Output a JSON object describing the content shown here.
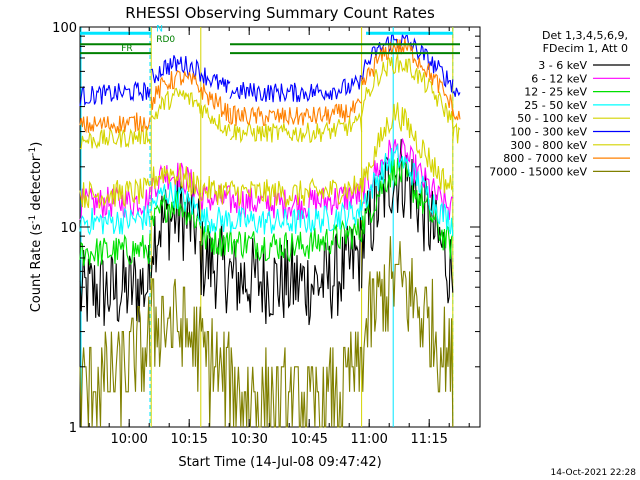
{
  "chart_data": {
    "type": "line",
    "title": "RHESSI Observing Summary Count Rates",
    "xlabel": "Start Time (14-Jul-08 09:47:42)",
    "ylabel": "Count Rate (s^-1 detector^-1)",
    "ylabel_parts": {
      "main": "Count Rate (s",
      "exp": "-1",
      "mid": " detector",
      "end": ")"
    },
    "y_scale": "log",
    "ylim": [
      1,
      100
    ],
    "x_unit": "minutes since 09:47:42",
    "xlim": [
      0,
      100
    ],
    "x_ticks": [
      {
        "x": 12.3,
        "label": "10:00"
      },
      {
        "x": 27.3,
        "label": "10:15"
      },
      {
        "x": 42.3,
        "label": "10:30"
      },
      {
        "x": 57.3,
        "label": "10:45"
      },
      {
        "x": 72.3,
        "label": "11:00"
      },
      {
        "x": 87.3,
        "label": "11:15"
      }
    ],
    "y_ticks": [
      {
        "y": 1,
        "label": "1"
      },
      {
        "y": 10,
        "label": "10"
      },
      {
        "y": 100,
        "label": "100"
      }
    ],
    "legend": {
      "header1": "Det 1,3,4,5,6,9,",
      "header2": "FDecim 1, Att 0",
      "placement": "right"
    },
    "gaps": [
      [
        17.8,
        30.2
      ],
      [
        70.4,
        93.2
      ]
    ],
    "night_boundaries": [
      17.5,
      93.2
    ],
    "saa_marker_x": 78.3,
    "flags": [
      {
        "name": "N",
        "label": "N",
        "color": "#00e5ff",
        "y": 93,
        "segments": [
          [
            0,
            17.8
          ],
          [
            71.5,
            93.2
          ]
        ]
      },
      {
        "name": "RD0",
        "label": "RD0",
        "color": "#008000",
        "y": 82,
        "segments": [
          [
            0,
            17.8
          ],
          [
            37.5,
            95
          ]
        ]
      },
      {
        "name": "FR",
        "label": "FR",
        "color": "#008000",
        "y": 74,
        "segments": [
          [
            0,
            17.8
          ],
          [
            37.5,
            95
          ]
        ]
      }
    ],
    "series": [
      {
        "name": "3 - 6 keV",
        "color": "#000000",
        "segments": [
          {
            "x": [
              0,
              4,
              8,
              12,
              17.5
            ],
            "y": [
              4.6,
              4.8,
              4.7,
              4.9,
              5.2
            ]
          },
          {
            "x": [
              17.8,
              20,
              24,
              27,
              30
            ],
            "y": [
              9,
              10.5,
              11.5,
              10.8,
              9.5
            ]
          },
          {
            "x": [
              30,
              33,
              36,
              37.5
            ],
            "y": [
              7,
              6.5,
              6.2,
              6.0
            ]
          },
          {
            "x": [
              37.5,
              42,
              50,
              57,
              62,
              67,
              70.4
            ],
            "y": [
              5.6,
              5.5,
              5.3,
              5.2,
              5.4,
              6.2,
              7.5
            ]
          },
          {
            "x": [
              70.4,
              73,
              76,
              78,
              80,
              83,
              86,
              89,
              91,
              93.2
            ],
            "y": [
              8,
              11,
              15,
              18,
              18.5,
              16,
              12,
              9,
              7.5,
              5.6
            ]
          }
        ]
      },
      {
        "name": "6 - 12 keV",
        "color": "#ff00ff",
        "segments": [
          {
            "x": [
              0,
              6,
              12,
              17.5
            ],
            "y": [
              13,
              13.2,
              13.4,
              13.6
            ]
          },
          {
            "x": [
              17.8,
              21,
              25,
              27,
              29,
              30.2
            ],
            "y": [
              16,
              18.5,
              18,
              17,
              15.5,
              14
            ]
          },
          {
            "x": [
              30.2,
              35,
              45,
              55,
              62,
              70.4
            ],
            "y": [
              14,
              13.6,
              13.2,
              13.0,
              13.6,
              14.5
            ]
          },
          {
            "x": [
              70.4,
              74,
              77,
              79,
              82,
              86,
              90,
              93.2
            ],
            "y": [
              15,
              19,
              23,
              24.5,
              22,
              17,
              13.5,
              12
            ]
          }
        ]
      },
      {
        "name": "12 - 25 keV",
        "color": "#00e000",
        "segments": [
          {
            "x": [
              0,
              6,
              12,
              17.5
            ],
            "y": [
              7.5,
              7.5,
              7.6,
              7.8
            ]
          },
          {
            "x": [
              17.8,
              21,
              24,
              27,
              30.2
            ],
            "y": [
              10,
              12.5,
              13.5,
              12,
              10.5
            ]
          },
          {
            "x": [
              30.2,
              36,
              45,
              55,
              62,
              70.4
            ],
            "y": [
              8.8,
              8.5,
              8.2,
              8.0,
              8.6,
              9.5
            ]
          },
          {
            "x": [
              70.4,
              74,
              77,
              79,
              82,
              86,
              90,
              93.2
            ],
            "y": [
              10,
              14,
              18,
              19.5,
              17,
              13,
              9.5,
              7.8
            ]
          }
        ]
      },
      {
        "name": "25 - 50 keV",
        "color": "#00ffff",
        "segments": [
          {
            "x": [
              0,
              6,
              12,
              17.5
            ],
            "y": [
              10.8,
              10.6,
              10.8,
              11.2
            ]
          },
          {
            "x": [
              17.8,
              21,
              24,
              27,
              30.2
            ],
            "y": [
              12.5,
              15,
              14.5,
              13.2,
              12
            ]
          },
          {
            "x": [
              30.2,
              36,
              45,
              55,
              62,
              70.4
            ],
            "y": [
              11,
              10.8,
              10.6,
              10.6,
              11,
              12
            ]
          },
          {
            "x": [
              70.4,
              74,
              77,
              79,
              82,
              86,
              90,
              93.2
            ],
            "y": [
              13,
              17,
              21,
              22.5,
              20,
              15.5,
              12,
              10.5
            ]
          }
        ]
      },
      {
        "name": "50 - 100 keV",
        "color": "#d4d400",
        "segments": [
          {
            "x": [
              0,
              6,
              12,
              17.5
            ],
            "y": [
              14.5,
              14.5,
              14.8,
              15
            ]
          },
          {
            "x": [
              17.8,
              21,
              24,
              27,
              30.2
            ],
            "y": [
              17,
              19,
              18.5,
              17,
              15.5
            ]
          },
          {
            "x": [
              30.2,
              36,
              45,
              55,
              62,
              70.4
            ],
            "y": [
              15.5,
              15,
              14.8,
              14.6,
              15,
              16
            ]
          },
          {
            "x": [
              70.4,
              74,
              77,
              79,
              82,
              86,
              90,
              93.2
            ],
            "y": [
              17,
              24,
              33,
              38,
              32,
              24,
              18,
              15.5
            ]
          }
        ]
      },
      {
        "name": "100 - 300 keV",
        "color": "#0000ff",
        "segments": [
          {
            "x": [
              0,
              6,
              12,
              17.5
            ],
            "y": [
              45,
              46,
              47,
              48
            ]
          },
          {
            "x": [
              17.8,
              21,
              25,
              29,
              32,
              36,
              37.5
            ],
            "y": [
              55,
              63,
              66,
              62,
              56,
              50,
              48
            ]
          },
          {
            "x": [
              37.5,
              45,
              55,
              62,
              68,
              70.4
            ],
            "y": [
              48,
              47,
              47,
              48,
              50,
              52
            ]
          },
          {
            "x": [
              70.4,
              74,
              78,
              82,
              86,
              90,
              93.2
            ],
            "y": [
              60,
              75,
              86,
              84,
              72,
              60,
              52
            ]
          },
          {
            "x": [
              93.2,
              95
            ],
            "y": [
              48,
              47
            ]
          }
        ]
      },
      {
        "name": "300 - 800 keV",
        "color": "#d4d400",
        "segments": [
          {
            "x": [
              0,
              6,
              12,
              17.5
            ],
            "y": [
              27,
              27.5,
              28,
              29
            ]
          },
          {
            "x": [
              17.8,
              21,
              25,
              29,
              32,
              36,
              37.5
            ],
            "y": [
              34,
              42,
              46,
              42,
              37,
              32,
              30
            ]
          },
          {
            "x": [
              37.5,
              45,
              55,
              62,
              68,
              70.4
            ],
            "y": [
              30,
              29.5,
              29.5,
              30,
              32,
              33
            ]
          },
          {
            "x": [
              70.4,
              74,
              78,
              82,
              86,
              90,
              93.2
            ],
            "y": [
              40,
              56,
              66,
              64,
              53,
              42,
              34
            ]
          },
          {
            "x": [
              93.2,
              95
            ],
            "y": [
              30,
              29
            ]
          }
        ]
      },
      {
        "name": "800 - 7000 keV",
        "color": "#ff8000",
        "segments": [
          {
            "x": [
              0,
              6,
              12,
              17.5
            ],
            "y": [
              32,
              32.5,
              33,
              34
            ]
          },
          {
            "x": [
              17.8,
              21,
              25,
              29,
              32,
              36,
              37.5
            ],
            "y": [
              42,
              52,
              56,
              52,
              45,
              39,
              36
            ]
          },
          {
            "x": [
              37.5,
              45,
              55,
              62,
              68,
              70.4
            ],
            "y": [
              36,
              35.5,
              35.5,
              36,
              38,
              40
            ]
          },
          {
            "x": [
              70.4,
              74,
              78,
              82,
              86,
              90,
              93.2
            ],
            "y": [
              50,
              66,
              80,
              78,
              64,
              50,
              40
            ]
          },
          {
            "x": [
              93.2,
              95
            ],
            "y": [
              36,
              35
            ]
          }
        ]
      },
      {
        "name": "7000 - 15000 keV",
        "color": "#808000",
        "segments": [
          {
            "x": [
              0,
              4,
              8,
              12,
              15,
              17.5
            ],
            "y": [
              1.5,
              1.6,
              1.7,
              2.0,
              2.4,
              2.8
            ]
          },
          {
            "x": [
              17.8,
              20,
              23,
              26,
              29,
              32,
              35,
              37.5
            ],
            "y": [
              3.2,
              3.5,
              3.4,
              3.0,
              2.6,
              2.2,
              1.8,
              1.6
            ]
          },
          {
            "x": [
              37.5,
              45,
              55,
              62,
              67,
              70.4
            ],
            "y": [
              1.5,
              1.4,
              1.3,
              1.3,
              1.6,
              2.0
            ]
          },
          {
            "x": [
              70.4,
              73,
              76,
              79,
              82,
              86,
              90,
              93.2
            ],
            "y": [
              2.5,
              3.5,
              4.8,
              5.5,
              4.8,
              3.6,
              2.6,
              2.0
            ]
          }
        ]
      }
    ]
  },
  "stamp": "14-Oct-2021 22:28"
}
